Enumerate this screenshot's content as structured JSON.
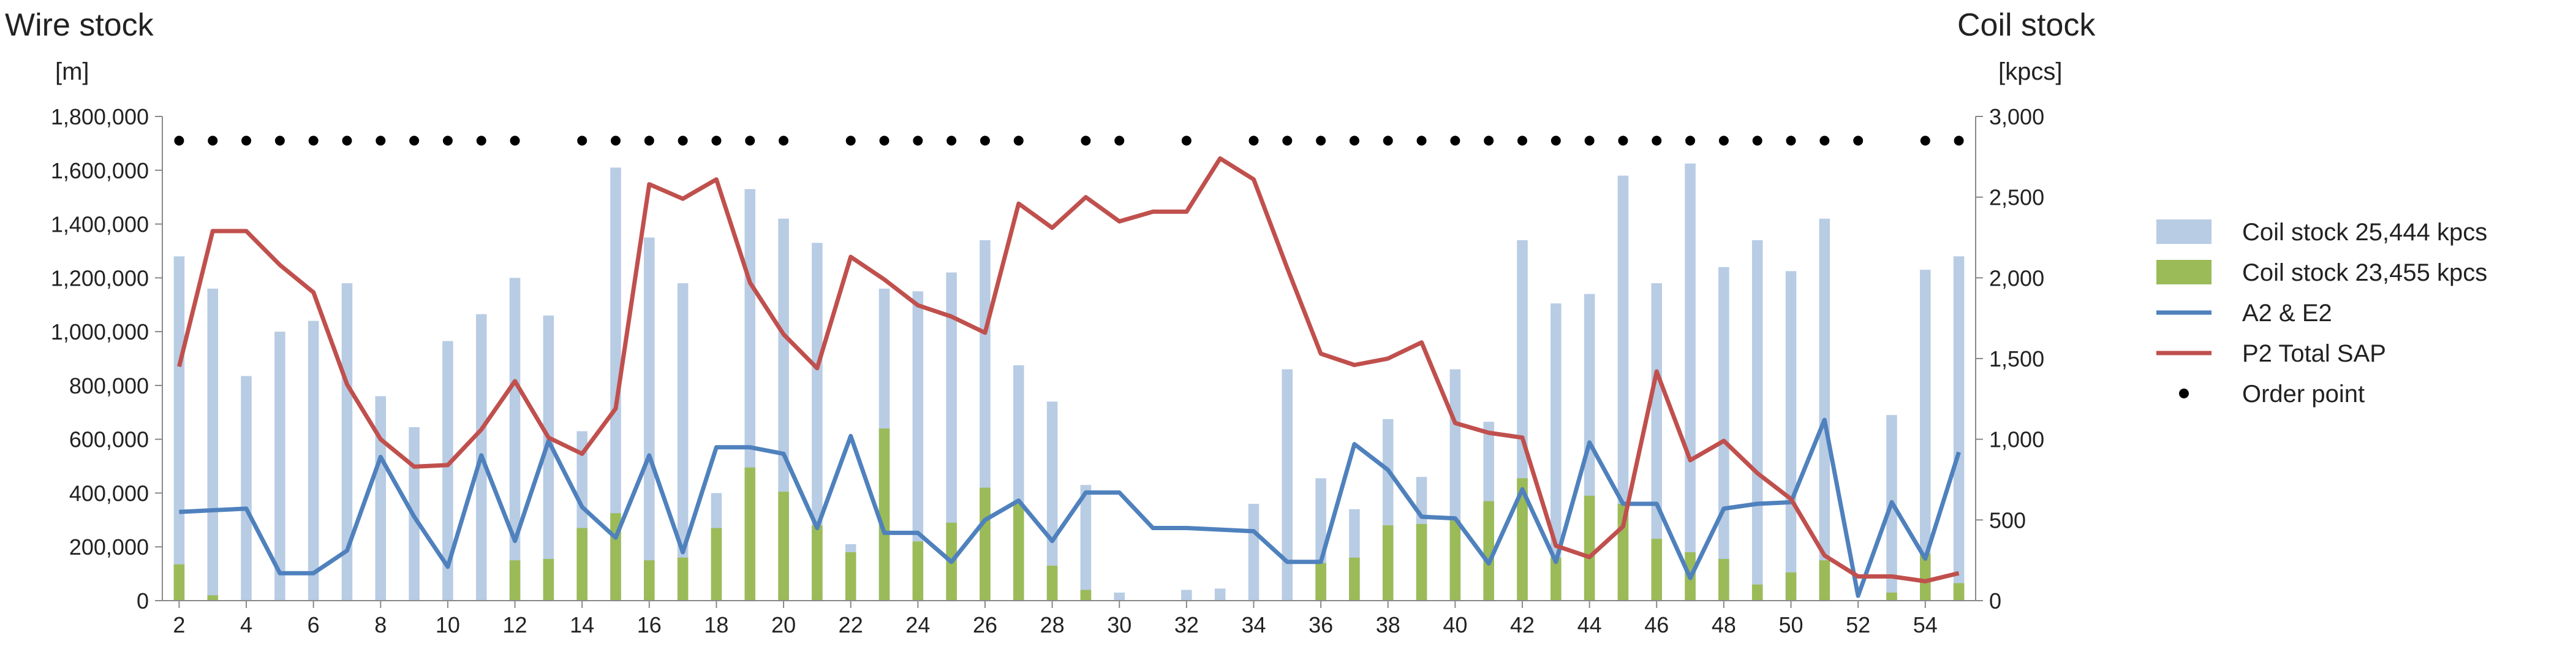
{
  "chart_data": {
    "type": "bar",
    "title": "",
    "y_left": {
      "title": "Wire stock",
      "unit": "[m]",
      "ylim": [
        0,
        1800000
      ],
      "ticks": [
        "0",
        "200,000",
        "400,000",
        "600,000",
        "800,000",
        "1,000,000",
        "1,200,000",
        "1,400,000",
        "1,600,000",
        "1,800,000"
      ]
    },
    "y_right": {
      "title": "Coil stock",
      "unit": "[kpcs]",
      "ylim": [
        0,
        3000
      ],
      "ticks": [
        "0",
        "500",
        "1,000",
        "1,500",
        "2,000",
        "2,500",
        "3,000"
      ]
    },
    "x": [
      2,
      3,
      4,
      5,
      6,
      7,
      8,
      9,
      10,
      11,
      12,
      13,
      14,
      15,
      16,
      17,
      18,
      19,
      20,
      21,
      22,
      23,
      24,
      25,
      26,
      27,
      28,
      29,
      30,
      31,
      32,
      33,
      34,
      35,
      36,
      37,
      38,
      39,
      40,
      41,
      42,
      43,
      44,
      45,
      46,
      47,
      48,
      49,
      50,
      51,
      52,
      53,
      54,
      55
    ],
    "x_tick_labels": [
      "2",
      "4",
      "6",
      "8",
      "10",
      "12",
      "14",
      "16",
      "18",
      "20",
      "22",
      "24",
      "26",
      "28",
      "30",
      "32",
      "34",
      "36",
      "38",
      "40",
      "42",
      "44",
      "46",
      "48",
      "50",
      "52",
      "54"
    ],
    "grid": false,
    "legend_position": "right",
    "series": [
      {
        "name": "Coil stock 25,444  kpcs",
        "type": "bar",
        "axis": "left",
        "color": "#b8cce4",
        "values": [
          1280000,
          1160000,
          835000,
          1000000,
          1040000,
          1180000,
          760000,
          645000,
          965000,
          1065000,
          1200000,
          1060000,
          630000,
          1610000,
          1350000,
          1180000,
          400000,
          1530000,
          1420000,
          1330000,
          210000,
          1160000,
          1150000,
          1220000,
          1340000,
          875000,
          740000,
          430000,
          30000,
          0,
          40000,
          45000,
          360000,
          860000,
          455000,
          340000,
          675000,
          460000,
          860000,
          665000,
          1340000,
          1105000,
          1140000,
          1580000,
          1180000,
          1625000,
          1240000,
          1340000,
          1225000,
          1420000,
          0,
          690000,
          1230000,
          1280000
        ]
      },
      {
        "name": "Coil stock 23,455  kpcs",
        "type": "bar",
        "axis": "left",
        "color": "#9bbb59",
        "values": [
          135000,
          20000,
          0,
          0,
          0,
          0,
          0,
          0,
          0,
          0,
          150000,
          155000,
          270000,
          325000,
          150000,
          160000,
          270000,
          495000,
          405000,
          280000,
          180000,
          640000,
          220000,
          290000,
          420000,
          360000,
          130000,
          40000,
          0,
          0,
          0,
          0,
          0,
          0,
          140000,
          160000,
          280000,
          285000,
          300000,
          370000,
          455000,
          160000,
          390000,
          360000,
          230000,
          180000,
          155000,
          60000,
          105000,
          150000,
          0,
          30000,
          175000,
          65000
        ]
      },
      {
        "name": "A2 & E2",
        "type": "line",
        "axis": "right",
        "color": "#4f81bd",
        "values": [
          550,
          560,
          570,
          170,
          170,
          310,
          890,
          520,
          210,
          900,
          370,
          990,
          580,
          390,
          900,
          300,
          950,
          950,
          910,
          450,
          1020,
          420,
          420,
          240,
          500,
          620,
          370,
          670,
          670,
          450,
          450,
          440,
          430,
          240,
          240,
          970,
          810,
          520,
          510,
          230,
          690,
          240,
          980,
          600,
          600,
          140,
          570,
          600,
          610,
          1120,
          30,
          610,
          260,
          920
        ]
      },
      {
        "name": "P2 Total SAP",
        "type": "line",
        "axis": "right",
        "color": "#c0504d",
        "values": [
          1450,
          2290,
          2290,
          2080,
          1910,
          1340,
          1000,
          830,
          840,
          1060,
          1360,
          1010,
          910,
          1190,
          2580,
          2490,
          2610,
          1970,
          1650,
          1440,
          2130,
          1990,
          1830,
          1760,
          1660,
          2460,
          2310,
          2500,
          2350,
          2410,
          2410,
          2740,
          2610,
          2060,
          1530,
          1460,
          1500,
          1600,
          1100,
          1040,
          1010,
          340,
          270,
          460,
          1420,
          870,
          990,
          790,
          630,
          280,
          150,
          150,
          120,
          170
        ]
      },
      {
        "name": "Order point",
        "type": "scatter",
        "axis": "right",
        "color": "#000000",
        "x": [
          2,
          3,
          4,
          5,
          6,
          7,
          8,
          9,
          10,
          11,
          12,
          14,
          15,
          16,
          17,
          18,
          19,
          20,
          22,
          23,
          24,
          25,
          26,
          27,
          29,
          30,
          32,
          34,
          35,
          36,
          37,
          38,
          39,
          40,
          41,
          42,
          43,
          44,
          45,
          46,
          47,
          48,
          49,
          50,
          51,
          52,
          54,
          55
        ],
        "values": [
          2850,
          2850,
          2850,
          2850,
          2850,
          2850,
          2850,
          2850,
          2850,
          2850,
          2850,
          2850,
          2850,
          2850,
          2850,
          2850,
          2850,
          2850,
          2850,
          2850,
          2850,
          2850,
          2850,
          2850,
          2850,
          2850,
          2850,
          2850,
          2850,
          2850,
          2850,
          2850,
          2850,
          2850,
          2850,
          2850,
          2850,
          2850,
          2850,
          2850,
          2850,
          2850,
          2850,
          2850,
          2850,
          2850,
          2850,
          2850
        ]
      }
    ]
  }
}
